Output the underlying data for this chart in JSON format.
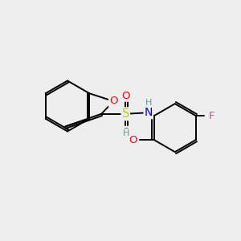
{
  "bg_color": "#eeeeee",
  "atom_colors": {
    "C": "#000000",
    "N": "#0000cc",
    "O": "#ff0000",
    "S": "#cccc00",
    "F": "#cc44cc",
    "H": "#669999"
  },
  "bond_color": "#000000",
  "lw": 1.4,
  "double_sep": 0.08,
  "font_size": 9.5
}
